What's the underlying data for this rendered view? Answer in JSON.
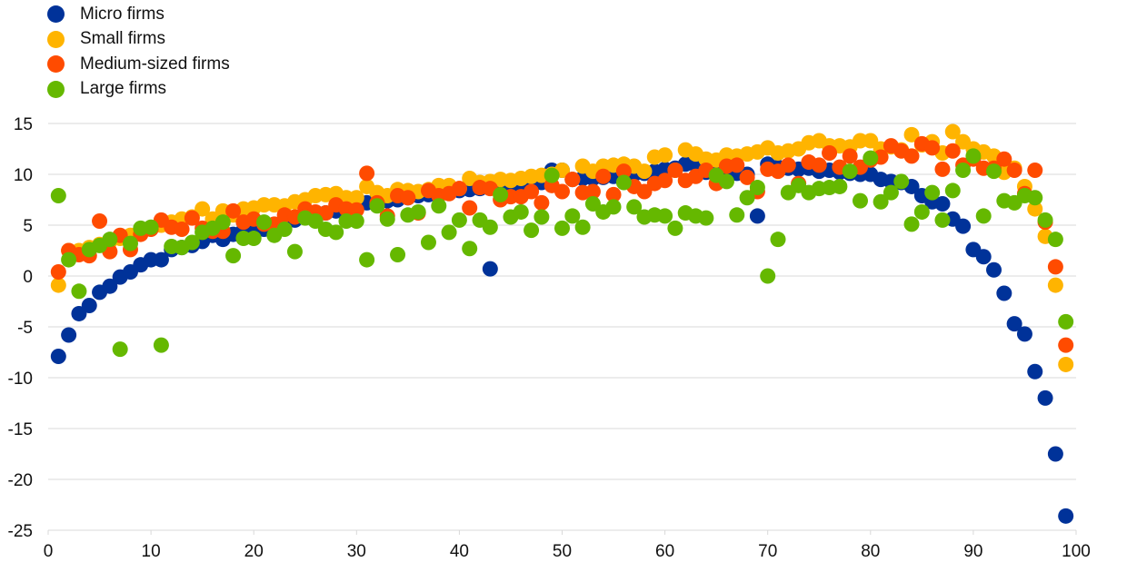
{
  "chart_data": {
    "type": "scatter",
    "title": "",
    "xlabel": "",
    "ylabel": "",
    "xlim": [
      0,
      100
    ],
    "ylim": [
      -25,
      15
    ],
    "xticks": [
      0,
      10,
      20,
      30,
      40,
      50,
      60,
      70,
      80,
      90,
      100
    ],
    "yticks": [
      15,
      10,
      5,
      0,
      -5,
      -10,
      -15,
      -20,
      -25
    ],
    "grid": "horizontal",
    "legend_position": "top-left",
    "series": [
      {
        "name": "Micro firms",
        "color": "#003299",
        "x": [
          1,
          2,
          3,
          4,
          5,
          6,
          7,
          8,
          9,
          10,
          11,
          12,
          13,
          14,
          15,
          16,
          17,
          18,
          19,
          20,
          21,
          22,
          23,
          24,
          25,
          26,
          27,
          28,
          29,
          30,
          31,
          32,
          33,
          34,
          35,
          36,
          37,
          38,
          39,
          40,
          41,
          42,
          43,
          44,
          45,
          46,
          47,
          48,
          49,
          50,
          51,
          52,
          53,
          54,
          55,
          56,
          57,
          58,
          59,
          60,
          61,
          62,
          63,
          64,
          65,
          66,
          67,
          68,
          69,
          70,
          71,
          72,
          73,
          74,
          75,
          76,
          77,
          78,
          79,
          80,
          81,
          82,
          83,
          84,
          85,
          86,
          87,
          88,
          89,
          90,
          91,
          92,
          93,
          94,
          95,
          96,
          97,
          98,
          99
        ],
        "y": [
          -7.9,
          -5.8,
          -3.7,
          -2.9,
          -1.6,
          -1.0,
          -0.1,
          0.4,
          1.1,
          1.6,
          1.6,
          2.6,
          2.8,
          3.0,
          3.4,
          4.0,
          3.6,
          4.1,
          4.5,
          4.4,
          4.6,
          4.9,
          5.2,
          5.5,
          5.8,
          6.0,
          6.2,
          6.4,
          6.6,
          6.8,
          7.2,
          7.6,
          7.4,
          7.5,
          7.7,
          7.9,
          8.0,
          8.1,
          8.3,
          8.4,
          8.5,
          8.6,
          0.7,
          8.8,
          8.9,
          9.0,
          9.1,
          9.2,
          10.4,
          10.4,
          9.5,
          9.6,
          9.6,
          9.7,
          9.8,
          9.9,
          10.0,
          10.1,
          10.3,
          10.5,
          10.6,
          11.0,
          10.9,
          10.2,
          10.1,
          10.0,
          10.1,
          10.0,
          5.9,
          11.0,
          10.7,
          10.6,
          10.5,
          10.6,
          10.3,
          10.4,
          10.2,
          10.1,
          10.0,
          10.0,
          9.5,
          9.3,
          9.2,
          8.8,
          7.9,
          7.3,
          7.1,
          5.6,
          4.9,
          2.6,
          1.9,
          0.6,
          -1.7,
          -4.7,
          -5.7,
          -9.4,
          -12.0,
          -17.5,
          -23.6
        ]
      },
      {
        "name": "Small firms",
        "color": "#FFB400",
        "x": [
          1,
          2,
          3,
          4,
          5,
          6,
          7,
          8,
          9,
          10,
          11,
          12,
          13,
          14,
          15,
          16,
          17,
          18,
          19,
          20,
          21,
          22,
          23,
          24,
          25,
          26,
          27,
          28,
          29,
          30,
          31,
          32,
          33,
          34,
          35,
          36,
          37,
          38,
          39,
          40,
          41,
          42,
          43,
          44,
          45,
          46,
          47,
          48,
          49,
          50,
          51,
          52,
          53,
          54,
          55,
          56,
          57,
          58,
          59,
          60,
          61,
          62,
          63,
          64,
          65,
          66,
          67,
          68,
          69,
          70,
          71,
          72,
          73,
          74,
          75,
          76,
          77,
          78,
          79,
          80,
          81,
          82,
          83,
          84,
          85,
          86,
          87,
          88,
          89,
          90,
          91,
          92,
          93,
          94,
          95,
          96,
          97,
          98,
          99
        ],
        "y": [
          -0.9,
          2.5,
          2.5,
          2.8,
          3.1,
          3.4,
          3.7,
          4.0,
          4.4,
          4.7,
          5.0,
          5.3,
          5.6,
          5.8,
          6.6,
          5.6,
          6.4,
          6.0,
          6.6,
          6.7,
          7.0,
          7.0,
          6.9,
          7.3,
          7.5,
          7.9,
          8.0,
          8.1,
          7.7,
          7.7,
          8.8,
          8.2,
          7.9,
          8.5,
          8.4,
          8.3,
          8.5,
          8.9,
          8.9,
          8.6,
          9.6,
          9.2,
          9.3,
          9.5,
          9.4,
          9.6,
          9.8,
          9.9,
          10.0,
          10.4,
          9.5,
          10.8,
          10.3,
          10.8,
          10.9,
          11.0,
          10.8,
          10.3,
          11.7,
          11.9,
          10.4,
          12.4,
          12.0,
          11.5,
          11.4,
          11.9,
          11.8,
          12.0,
          12.2,
          12.6,
          12.1,
          12.3,
          12.5,
          13.1,
          13.3,
          12.8,
          12.8,
          12.7,
          13.3,
          13.3,
          12.5,
          12.7,
          12.4,
          13.9,
          12.9,
          13.2,
          12.1,
          14.2,
          13.2,
          12.5,
          12.2,
          11.8,
          10.2,
          10.6,
          8.8,
          6.6,
          3.9,
          -0.9,
          -8.7
        ]
      },
      {
        "name": "Medium-sized firms",
        "color": "#FF4B00",
        "x": [
          1,
          2,
          3,
          4,
          5,
          6,
          7,
          8,
          9,
          10,
          11,
          12,
          13,
          14,
          15,
          16,
          17,
          18,
          19,
          20,
          21,
          22,
          23,
          24,
          25,
          26,
          27,
          28,
          29,
          30,
          31,
          32,
          33,
          34,
          35,
          36,
          37,
          38,
          39,
          40,
          41,
          42,
          43,
          44,
          45,
          46,
          47,
          48,
          49,
          50,
          51,
          52,
          53,
          54,
          55,
          56,
          57,
          58,
          59,
          60,
          61,
          62,
          63,
          64,
          65,
          66,
          67,
          68,
          69,
          70,
          71,
          72,
          73,
          74,
          75,
          76,
          77,
          78,
          79,
          80,
          81,
          82,
          83,
          84,
          85,
          86,
          87,
          88,
          89,
          90,
          91,
          92,
          93,
          94,
          95,
          96,
          97,
          98,
          99
        ],
        "y": [
          0.4,
          2.5,
          2.1,
          2.0,
          5.4,
          2.4,
          4.0,
          2.6,
          4.1,
          4.6,
          5.5,
          4.8,
          4.6,
          5.7,
          4.7,
          4.4,
          4.4,
          6.4,
          5.3,
          5.6,
          5.1,
          5.1,
          6.0,
          5.8,
          6.6,
          6.3,
          6.2,
          7.0,
          6.6,
          6.5,
          10.1,
          7.2,
          5.9,
          7.9,
          7.7,
          6.2,
          8.4,
          7.9,
          8.1,
          8.6,
          6.7,
          8.7,
          8.6,
          7.5,
          7.8,
          7.8,
          8.3,
          7.2,
          8.9,
          8.3,
          9.5,
          8.2,
          8.3,
          9.8,
          8.0,
          10.3,
          8.8,
          8.3,
          9.1,
          9.4,
          10.4,
          9.4,
          9.8,
          10.4,
          9.1,
          10.8,
          10.9,
          9.7,
          8.3,
          10.5,
          10.3,
          10.9,
          9.1,
          11.2,
          10.9,
          12.1,
          10.7,
          11.8,
          10.7,
          11.4,
          11.7,
          12.8,
          12.3,
          11.8,
          13.0,
          12.6,
          10.5,
          12.3,
          10.9,
          11.5,
          10.6,
          10.6,
          11.5,
          10.4,
          8.1,
          10.4,
          5.3,
          0.9,
          -6.8
        ]
      },
      {
        "name": "Large firms",
        "color": "#65B800",
        "x": [
          1,
          2,
          3,
          4,
          5,
          6,
          7,
          8,
          9,
          10,
          11,
          12,
          13,
          14,
          15,
          16,
          17,
          18,
          19,
          20,
          21,
          22,
          23,
          24,
          25,
          26,
          27,
          28,
          29,
          30,
          31,
          32,
          33,
          34,
          35,
          36,
          37,
          38,
          39,
          40,
          41,
          42,
          43,
          44,
          45,
          46,
          47,
          48,
          49,
          50,
          51,
          52,
          53,
          54,
          55,
          56,
          57,
          58,
          59,
          60,
          61,
          62,
          63,
          64,
          65,
          66,
          67,
          68,
          69,
          70,
          71,
          72,
          73,
          74,
          75,
          76,
          77,
          78,
          79,
          80,
          81,
          82,
          83,
          84,
          85,
          86,
          87,
          88,
          89,
          90,
          91,
          92,
          93,
          94,
          95,
          96,
          97,
          98,
          99
        ],
        "y": [
          7.9,
          1.6,
          -1.5,
          2.6,
          3.0,
          3.6,
          -7.2,
          3.2,
          4.7,
          4.8,
          -6.8,
          2.9,
          2.8,
          3.3,
          4.3,
          4.7,
          5.3,
          2.0,
          3.7,
          3.7,
          5.3,
          4.0,
          4.6,
          2.4,
          5.7,
          5.4,
          4.6,
          4.3,
          5.4,
          5.4,
          1.6,
          6.9,
          5.6,
          2.1,
          6.0,
          6.3,
          3.3,
          6.9,
          4.3,
          5.5,
          2.7,
          5.5,
          4.8,
          8.0,
          5.8,
          6.3,
          4.5,
          5.8,
          9.9,
          4.7,
          5.9,
          4.8,
          7.1,
          6.3,
          6.8,
          9.2,
          6.8,
          5.8,
          6.0,
          5.9,
          4.7,
          6.2,
          5.9,
          5.7,
          9.9,
          9.3,
          6.0,
          7.7,
          8.7,
          0.0,
          3.6,
          8.2,
          8.9,
          8.2,
          8.6,
          8.7,
          8.8,
          10.3,
          7.4,
          11.6,
          7.3,
          8.2,
          9.3,
          5.1,
          6.3,
          8.2,
          5.5,
          8.4,
          10.4,
          11.8,
          5.9,
          10.3,
          7.4,
          7.2,
          7.9,
          7.7,
          5.5,
          3.6,
          -4.5
        ]
      }
    ]
  }
}
